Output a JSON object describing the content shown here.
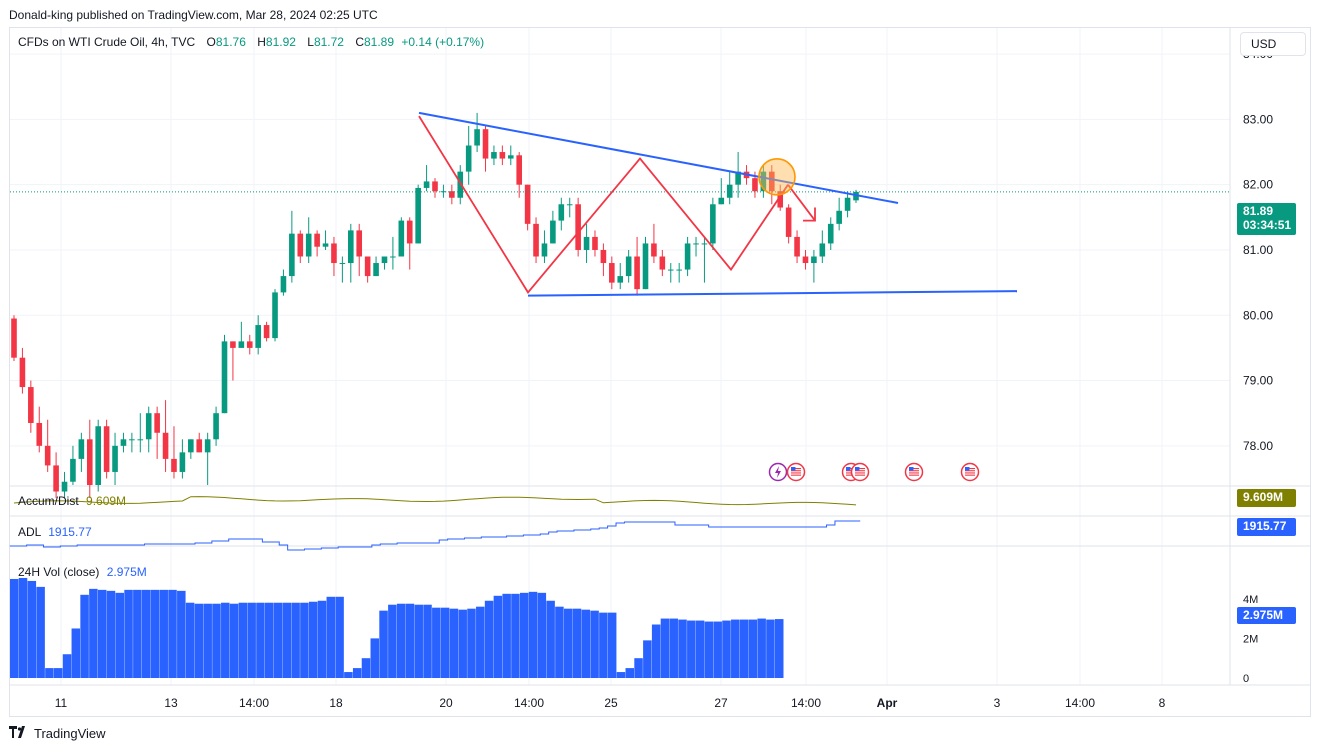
{
  "header": {
    "published_by": "Donald-king published on TradingView.com, Mar 28, 2024 02:25 UTC"
  },
  "currency_button": "USD",
  "legend": {
    "symbol": "CFDs on WTI Crude Oil, 4h, TVC",
    "open_label": "O",
    "open": "81.76",
    "high_label": "H",
    "high": "81.92",
    "low_label": "L",
    "low": "81.72",
    "close_label": "C",
    "close": "81.89",
    "change": "+0.14 (+0.17%)"
  },
  "price_badge": {
    "value": "81.89",
    "countdown": "03:34:51"
  },
  "indicators": {
    "accum": {
      "name": "Accum/Dist",
      "value": "9.609M",
      "badge": "9.609M"
    },
    "adl": {
      "name": "ADL",
      "value": "1915.77",
      "badge": "1915.77"
    },
    "volume": {
      "name": "24H Vol (close)",
      "value": "2.975M",
      "badge": "2.975M"
    }
  },
  "brand": "TradingView",
  "colors": {
    "up": "#089981",
    "down": "#f23645",
    "trend": "#2962ff",
    "accum": "#808000",
    "adl": "#2962ff",
    "volume": "#2962ff",
    "pattern": "#f23645",
    "circle": "#ff9800"
  },
  "chart_data": {
    "type": "candlestick",
    "timeframe": "4h",
    "y_range": [
      77.4,
      84.4
    ],
    "y_ticks": [
      "84.00",
      "83.00",
      "82.00",
      "81.00",
      "80.00",
      "79.00",
      "78.00"
    ],
    "x_ticks": [
      "11",
      "13",
      "14:00",
      "18",
      "20",
      "14:00",
      "25",
      "27",
      "14:00",
      "Apr",
      "3",
      "14:00",
      "8"
    ],
    "volume_ticks": [
      "4M",
      "2M",
      "0"
    ],
    "candles": [
      [
        79.95,
        79.35,
        80.0,
        79.3
      ],
      [
        79.35,
        78.9,
        79.5,
        78.8
      ],
      [
        78.9,
        78.35,
        79.0,
        78.2
      ],
      [
        78.35,
        78.0,
        78.6,
        77.9
      ],
      [
        78.0,
        77.7,
        78.4,
        77.6
      ],
      [
        77.7,
        77.3,
        77.9,
        77.2
      ],
      [
        77.3,
        77.45,
        77.6,
        77.2
      ],
      [
        77.45,
        77.8,
        78.0,
        77.4
      ],
      [
        77.8,
        78.1,
        78.2,
        77.6
      ],
      [
        78.1,
        77.4,
        78.4,
        77.2
      ],
      [
        77.4,
        78.3,
        78.4,
        77.3
      ],
      [
        78.3,
        77.6,
        78.4,
        77.5
      ],
      [
        77.6,
        78.0,
        78.2,
        77.4
      ],
      [
        78.0,
        78.1,
        78.2,
        77.9
      ],
      [
        78.1,
        78.1,
        78.2,
        77.9
      ],
      [
        78.1,
        78.1,
        78.5,
        77.9
      ],
      [
        78.1,
        78.5,
        78.6,
        77.9
      ],
      [
        78.5,
        78.2,
        78.6,
        77.8
      ],
      [
        78.2,
        77.8,
        78.7,
        77.6
      ],
      [
        77.8,
        77.6,
        78.3,
        77.5
      ],
      [
        77.6,
        77.9,
        78.1,
        77.5
      ],
      [
        77.9,
        78.1,
        78.1,
        77.8
      ],
      [
        78.1,
        77.9,
        78.2,
        77.9
      ],
      [
        77.9,
        78.1,
        78.2,
        77.4
      ],
      [
        78.1,
        78.5,
        78.6,
        78.0
      ],
      [
        78.5,
        79.6,
        79.7,
        78.5
      ],
      [
        79.6,
        79.5,
        79.6,
        79.0
      ],
      [
        79.5,
        79.6,
        79.9,
        79.5
      ],
      [
        79.6,
        79.5,
        79.7,
        79.4
      ],
      [
        79.5,
        79.85,
        80.0,
        79.4
      ],
      [
        79.85,
        79.65,
        79.9,
        79.6
      ],
      [
        79.65,
        80.35,
        80.4,
        79.6
      ],
      [
        80.35,
        80.6,
        80.7,
        80.3
      ],
      [
        80.6,
        81.25,
        81.6,
        80.5
      ],
      [
        81.25,
        80.9,
        81.3,
        80.8
      ],
      [
        80.9,
        81.25,
        81.5,
        80.8
      ],
      [
        81.25,
        81.05,
        81.3,
        80.9
      ],
      [
        81.05,
        81.1,
        81.3,
        81.0
      ],
      [
        81.1,
        80.8,
        81.2,
        80.6
      ],
      [
        80.8,
        80.8,
        80.9,
        80.5
      ],
      [
        80.8,
        81.3,
        81.4,
        80.5
      ],
      [
        81.3,
        80.9,
        81.4,
        80.6
      ],
      [
        80.9,
        80.6,
        80.9,
        80.5
      ],
      [
        80.6,
        80.8,
        80.9,
        80.6
      ],
      [
        80.8,
        80.9,
        80.9,
        80.7
      ],
      [
        80.9,
        80.9,
        81.2,
        80.7
      ],
      [
        80.9,
        81.45,
        81.5,
        80.9
      ],
      [
        81.45,
        81.1,
        81.5,
        80.7
      ],
      [
        81.1,
        81.95,
        82.0,
        81.1
      ],
      [
        81.95,
        82.05,
        82.3,
        81.9
      ],
      [
        82.05,
        81.9,
        82.1,
        81.8
      ],
      [
        81.9,
        81.9,
        82.0,
        81.8
      ],
      [
        81.9,
        81.8,
        82.0,
        81.7
      ],
      [
        81.8,
        82.2,
        82.3,
        81.7
      ],
      [
        82.2,
        82.6,
        82.9,
        82.0
      ],
      [
        82.6,
        82.85,
        83.1,
        82.5
      ],
      [
        82.85,
        82.4,
        82.9,
        82.2
      ],
      [
        82.4,
        82.5,
        82.6,
        82.3
      ],
      [
        82.5,
        82.4,
        82.6,
        82.3
      ],
      [
        82.4,
        82.45,
        82.6,
        82.3
      ],
      [
        82.45,
        82.0,
        82.5,
        81.8
      ],
      [
        82.0,
        81.4,
        82.0,
        81.3
      ],
      [
        81.4,
        80.9,
        81.5,
        80.8
      ],
      [
        80.9,
        81.1,
        81.3,
        80.8
      ],
      [
        81.1,
        81.45,
        81.6,
        81.1
      ],
      [
        81.45,
        81.7,
        81.8,
        81.3
      ],
      [
        81.7,
        81.7,
        81.8,
        81.5
      ],
      [
        81.7,
        81.0,
        81.8,
        80.9
      ],
      [
        81.0,
        81.2,
        81.4,
        80.8
      ],
      [
        81.2,
        81.0,
        81.3,
        80.9
      ],
      [
        81.0,
        80.8,
        81.1,
        80.6
      ],
      [
        80.8,
        80.5,
        80.9,
        80.4
      ],
      [
        80.5,
        80.6,
        80.8,
        80.4
      ],
      [
        80.6,
        80.9,
        81.0,
        80.5
      ],
      [
        80.9,
        80.4,
        81.2,
        80.3
      ],
      [
        80.4,
        81.1,
        81.2,
        80.4
      ],
      [
        81.1,
        80.9,
        81.4,
        80.8
      ],
      [
        80.9,
        80.7,
        81.0,
        80.6
      ],
      [
        80.7,
        80.7,
        80.8,
        80.5
      ],
      [
        80.7,
        80.7,
        80.8,
        80.5
      ],
      [
        80.7,
        81.1,
        81.2,
        80.6
      ],
      [
        81.1,
        81.1,
        81.2,
        80.9
      ],
      [
        81.1,
        81.1,
        81.2,
        80.5
      ],
      [
        81.1,
        81.7,
        81.8,
        81.0
      ],
      [
        81.7,
        81.8,
        82.1,
        81.7
      ],
      [
        81.8,
        82.0,
        82.2,
        81.7
      ],
      [
        82.0,
        82.2,
        82.5,
        81.8
      ],
      [
        82.2,
        82.1,
        82.3,
        82.0
      ],
      [
        82.1,
        81.9,
        82.2,
        81.8
      ],
      [
        81.9,
        82.2,
        82.3,
        81.8
      ],
      [
        82.2,
        81.9,
        82.3,
        81.7
      ],
      [
        81.9,
        81.65,
        82.0,
        81.6
      ],
      [
        81.65,
        81.2,
        81.7,
        81.1
      ],
      [
        81.2,
        80.9,
        81.3,
        80.8
      ],
      [
        80.9,
        80.8,
        81.0,
        80.7
      ],
      [
        80.8,
        80.9,
        81.0,
        80.5
      ],
      [
        80.9,
        81.1,
        81.3,
        80.8
      ],
      [
        81.1,
        81.4,
        81.5,
        81.0
      ],
      [
        81.4,
        81.6,
        81.8,
        81.3
      ],
      [
        81.6,
        81.8,
        81.9,
        81.5
      ],
      [
        81.76,
        81.89,
        81.92,
        81.72
      ]
    ],
    "trendlines": [
      {
        "name": "upper",
        "points": [
          [
            0,
            83.1
          ],
          [
            1,
            81.75
          ]
        ]
      },
      {
        "name": "lower",
        "points": [
          [
            0,
            80.3
          ],
          [
            1,
            80.37
          ]
        ]
      }
    ],
    "accum_dist_last": "9.609M",
    "adl_last": "1915.77",
    "volume_last": "2.975M",
    "volume_range": [
      0,
      5.2
    ],
    "volume": [
      5.0,
      5.05,
      4.9,
      4.6,
      0.5,
      0.5,
      1.2,
      2.5,
      4.2,
      4.5,
      4.45,
      4.4,
      4.3,
      4.45,
      4.45,
      4.45,
      4.45,
      4.45,
      4.45,
      4.4,
      3.8,
      3.75,
      3.75,
      3.75,
      3.8,
      3.75,
      3.8,
      3.8,
      3.8,
      3.8,
      3.8,
      3.8,
      3.8,
      3.8,
      3.85,
      3.9,
      4.1,
      4.1,
      0.3,
      0.5,
      1.0,
      2.0,
      3.4,
      3.7,
      3.75,
      3.75,
      3.7,
      3.7,
      3.55,
      3.55,
      3.5,
      3.45,
      3.5,
      3.6,
      3.9,
      4.15,
      4.25,
      4.25,
      4.3,
      4.35,
      4.3,
      3.9,
      3.6,
      3.5,
      3.5,
      3.45,
      3.4,
      3.3,
      3.3,
      0.3,
      0.5,
      1.0,
      1.9,
      2.7,
      3.0,
      3.0,
      2.95,
      2.9,
      2.9,
      2.85,
      2.85,
      2.9,
      2.95,
      2.95,
      2.95,
      3.0,
      2.95,
      2.975
    ]
  }
}
